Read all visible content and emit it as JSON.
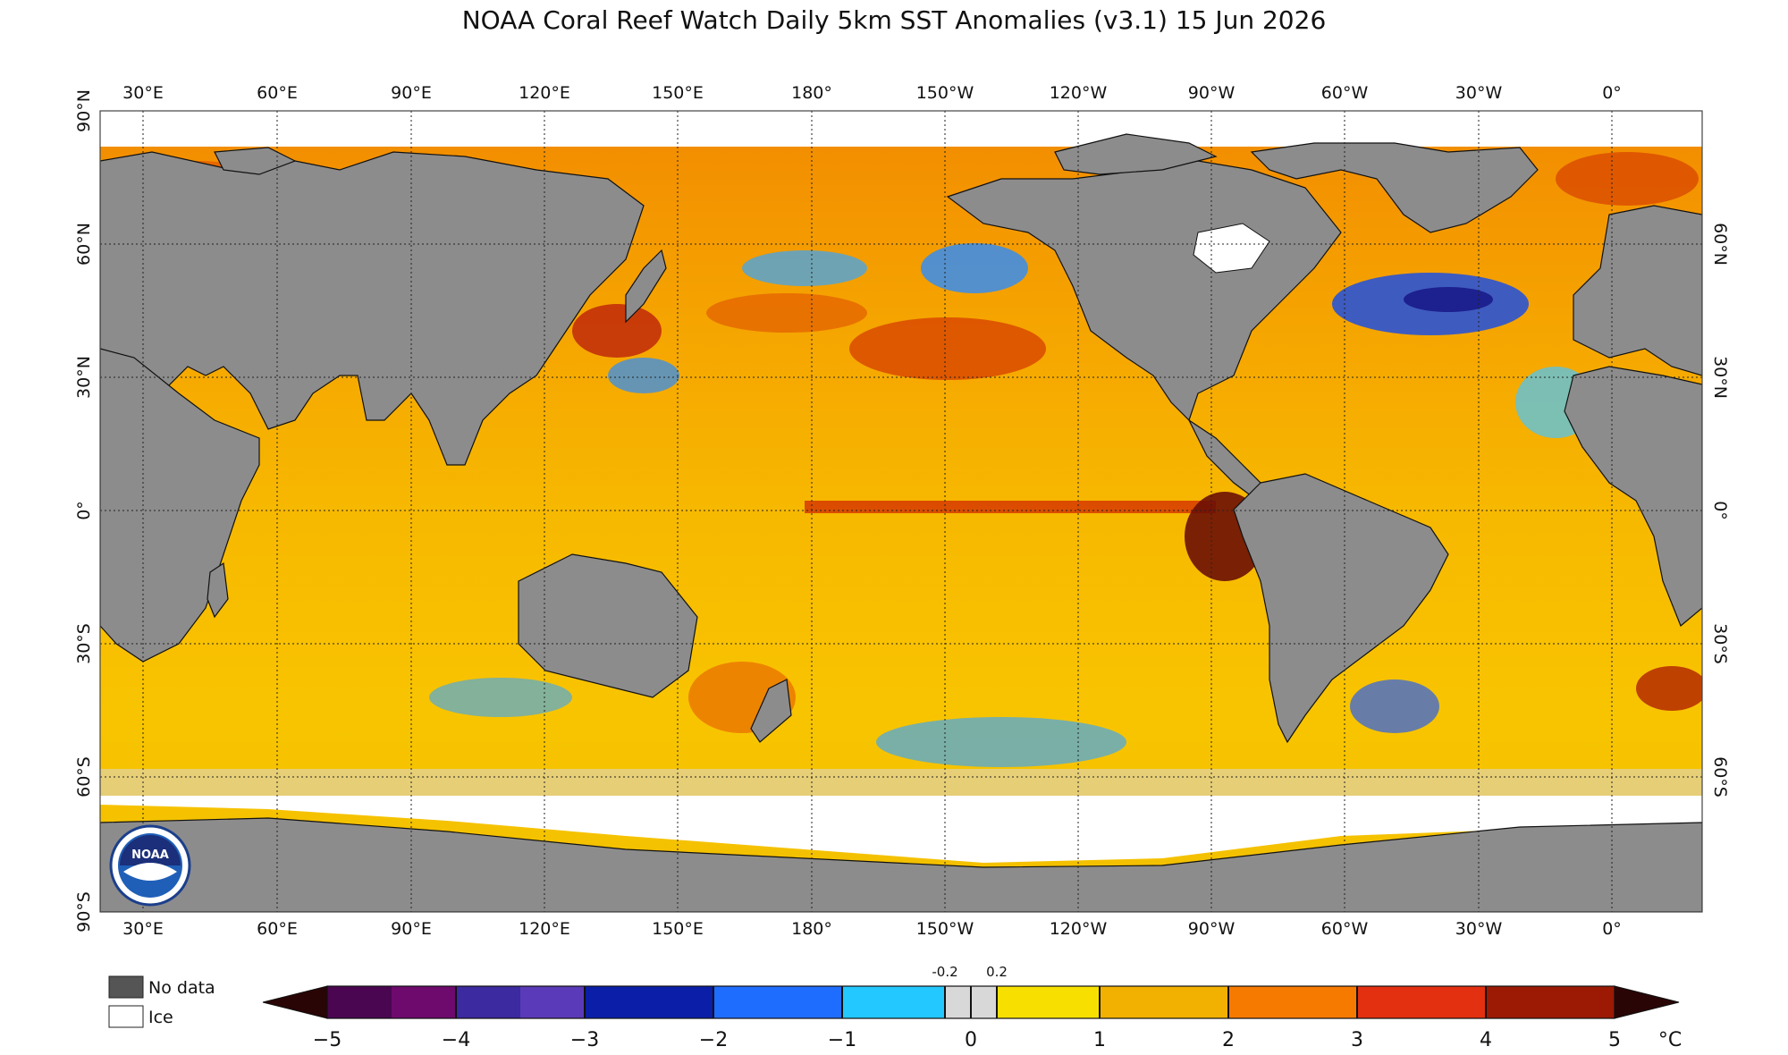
{
  "title": "NOAA Coral Reef Watch Daily 5km SST Anomalies  (v3.1)   15 Jun 2026",
  "lon_labels": [
    "30°E",
    "60°E",
    "90°E",
    "120°E",
    "150°E",
    "180°",
    "150°W",
    "120°W",
    "90°W",
    "60°W",
    "30°W",
    "0°"
  ],
  "lat_labels_left": [
    "90°N",
    "60°N",
    "30°N",
    "0°",
    "30°S",
    "60°S",
    "90°S"
  ],
  "lat_labels_right": [
    "60°N",
    "30°N",
    "0°",
    "30°S",
    "60°S"
  ],
  "legend": {
    "no_data": "No data",
    "ice": "Ice",
    "unit": "°C",
    "ticks": [
      "−5",
      "−4",
      "−3",
      "−2",
      "−1",
      "0",
      "1",
      "2",
      "3",
      "4",
      "5"
    ],
    "small_ticks": [
      "-0.2",
      "0.2"
    ],
    "colors": {
      "no_data": "#555555",
      "ice": "#ffffff",
      "land": "#8c8c8c",
      "ocean_warm": "#f2b500"
    }
  },
  "logo": {
    "text": "NOAA"
  }
}
